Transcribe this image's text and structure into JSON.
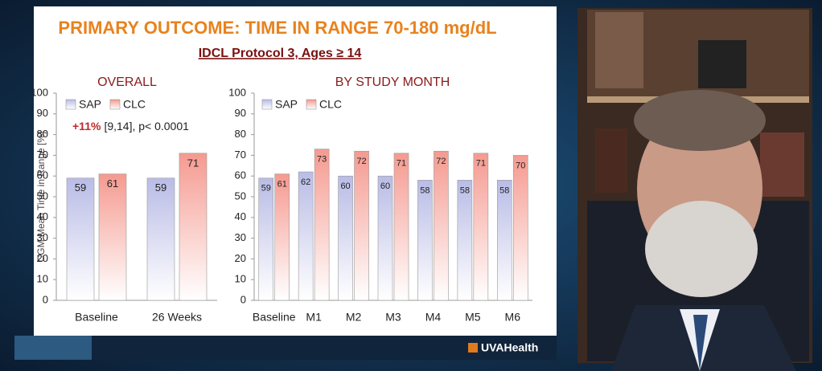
{
  "slide": {
    "title": "PRIMARY OUTCOME: TIME IN RANGE 70-180 mg/dL",
    "subtitle": "IDCL Protocol 3, Ages ≥ 14",
    "logo": "UVAHealth"
  },
  "chart_data": [
    {
      "type": "bar",
      "title": "OVERALL",
      "y_label": "CGM Mean Time in Range [%]",
      "annotations": [
        "+11%",
        "[9,14], p< 0.0001"
      ],
      "categories": [
        "Baseline",
        "26 Weeks"
      ],
      "series": [
        {
          "name": "SAP",
          "color": "#b9bce6",
          "values": [
            59,
            59
          ]
        },
        {
          "name": "CLC",
          "color": "#f59a90",
          "values": [
            61,
            71
          ]
        }
      ],
      "ylim": [
        0,
        100
      ],
      "yticks": [
        0,
        10,
        20,
        30,
        40,
        50,
        60,
        70,
        80,
        90,
        100
      ]
    },
    {
      "type": "bar",
      "title": "BY STUDY MONTH",
      "categories": [
        "Baseline",
        "M1",
        "M2",
        "M3",
        "M4",
        "M5",
        "M6"
      ],
      "series": [
        {
          "name": "SAP",
          "color": "#b9bce6",
          "values": [
            59,
            62,
            60,
            60,
            58,
            58,
            58
          ]
        },
        {
          "name": "CLC",
          "color": "#f59a90",
          "values": [
            61,
            73,
            72,
            71,
            72,
            71,
            70
          ]
        }
      ],
      "ylim": [
        0,
        100
      ],
      "yticks": [
        0,
        10,
        20,
        30,
        40,
        50,
        60,
        70,
        80,
        90,
        100
      ]
    }
  ]
}
